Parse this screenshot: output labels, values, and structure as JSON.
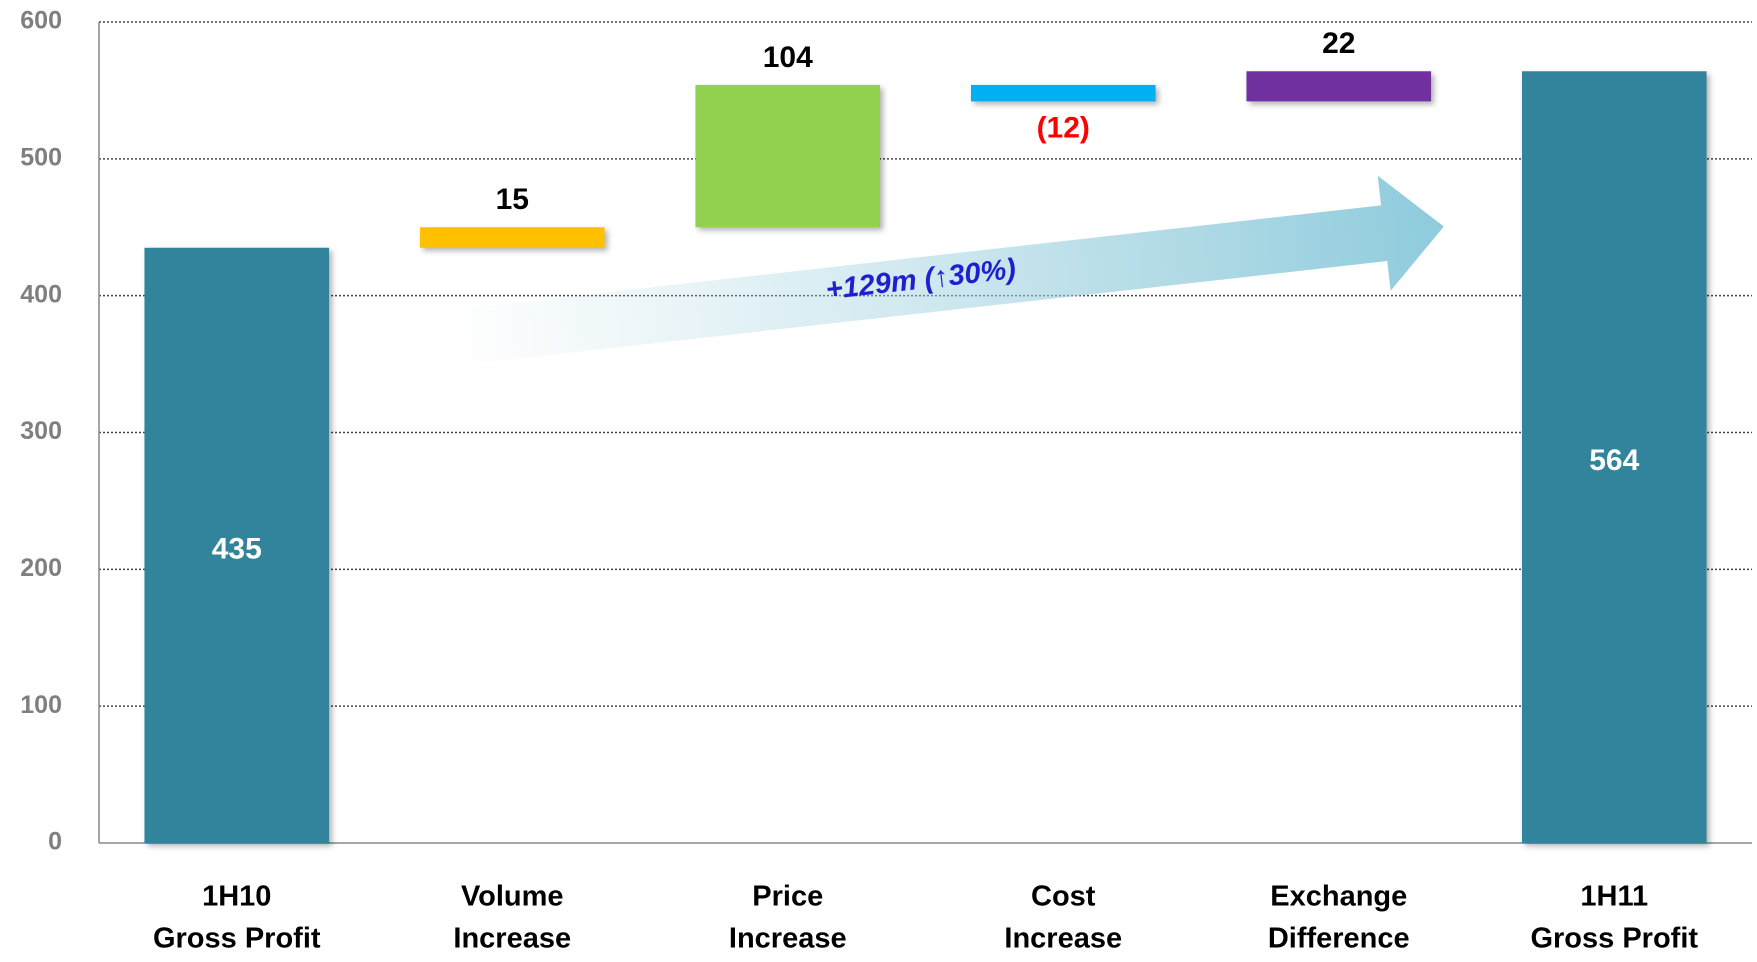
{
  "chart_data": {
    "type": "waterfall",
    "categories": [
      [
        "1H10",
        "Gross Profit"
      ],
      [
        "Volume",
        "Increase"
      ],
      [
        "Price",
        "Increase"
      ],
      [
        "Cost",
        "Increase"
      ],
      [
        "Exchange",
        "Difference"
      ],
      [
        "1H11",
        "Gross Profit"
      ]
    ],
    "values": [
      435,
      15,
      104,
      -12,
      22,
      564
    ],
    "value_labels": [
      "435",
      "15",
      "104",
      "(12)",
      "22",
      "564"
    ],
    "measure": [
      "absolute",
      "relative",
      "relative",
      "relative",
      "relative",
      "absolute"
    ],
    "colors": [
      "#31849b",
      "#ffc000",
      "#92d050",
      "#00b0f0",
      "#7030a0",
      "#31849b"
    ],
    "ylim": [
      0,
      600
    ],
    "yticks": [
      0,
      100,
      200,
      300,
      400,
      500,
      600
    ],
    "grid": true,
    "annotation": "+129m (↑30%)"
  }
}
